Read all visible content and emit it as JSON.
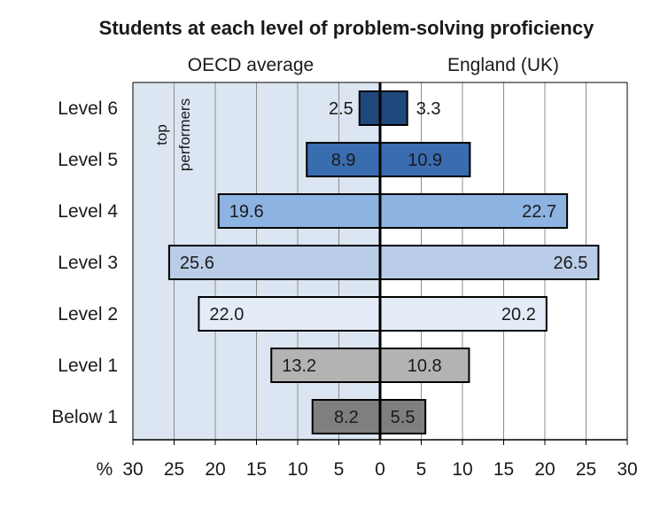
{
  "chart_data": {
    "type": "bar",
    "orientation": "horizontal-diverging",
    "title": "Students at each level of problem-solving proficiency",
    "categories": [
      "Level 6",
      "Level 5",
      "Level 4",
      "Level 3",
      "Level 2",
      "Level 1",
      "Below 1"
    ],
    "series": [
      {
        "name": "OECD average",
        "side": "left",
        "values": [
          2.5,
          8.9,
          19.6,
          25.6,
          22.0,
          13.2,
          8.2
        ]
      },
      {
        "name": "England (UK)",
        "side": "right",
        "values": [
          3.3,
          10.9,
          22.7,
          26.5,
          20.2,
          10.8,
          5.5
        ]
      }
    ],
    "value_labels": {
      "left": [
        "2.5",
        "8.9",
        "19.6",
        "25.6",
        "22.0",
        "13.2",
        "8.2"
      ],
      "right": [
        "3.3",
        "10.9",
        "22.7",
        "26.5",
        "20.2",
        "10.8",
        "5.5"
      ]
    },
    "level_colors": [
      "#1f497d",
      "#3a6cb0",
      "#8db3e2",
      "#b9cde8",
      "#e4ecf7",
      "#b3b3b3",
      "#7f7f7f"
    ],
    "axis_unit_label": "%",
    "xlim": [
      -30,
      30
    ],
    "ticks": [
      -30,
      -25,
      -20,
      -15,
      -10,
      -5,
      0,
      5,
      10,
      15,
      20,
      25,
      30
    ],
    "tick_labels": [
      "30",
      "25",
      "20",
      "15",
      "10",
      "5",
      "0",
      "5",
      "10",
      "15",
      "20",
      "25",
      "30"
    ],
    "annotation": {
      "line1": "top",
      "line2": "performers"
    },
    "grid": true
  }
}
